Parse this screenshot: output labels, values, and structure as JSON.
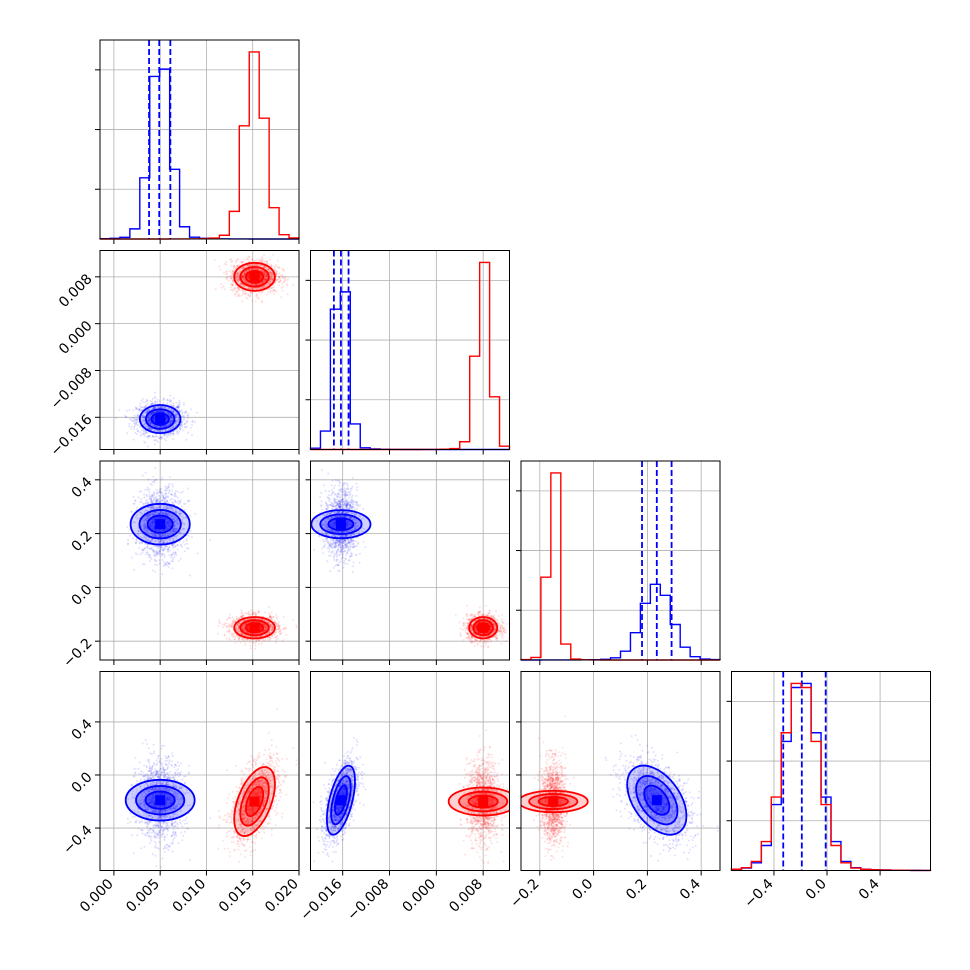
{
  "chart_data": {
    "type": "corner",
    "grid": true,
    "colors": {
      "series_a": "#0000ff",
      "series_b": "#ff0000",
      "grid": "#b0b0b0",
      "frame": "#000000"
    },
    "parameters": [
      {
        "range": [
          -0.0015,
          0.02
        ],
        "ticks": [
          0.0,
          0.005,
          0.01,
          0.015,
          0.02
        ],
        "tick_labels": [
          "0.000",
          "0.005",
          "0.010",
          "0.015",
          "0.020"
        ]
      },
      {
        "range": [
          -0.0215,
          0.0125
        ],
        "ticks": [
          -0.016,
          -0.008,
          0.0,
          0.008
        ],
        "tick_labels": [
          "−0.016",
          "−0.008",
          "0.000",
          "0.008"
        ]
      },
      {
        "range": [
          -0.27,
          0.47
        ],
        "ticks": [
          -0.2,
          0.0,
          0.2,
          0.4
        ],
        "tick_labels": [
          "−0.2",
          "0.0",
          "0.2",
          "0.4"
        ]
      },
      {
        "range": [
          -0.72,
          0.78
        ],
        "ticks": [
          -0.4,
          0.0,
          0.4
        ],
        "tick_labels": [
          "−0.4",
          "0.0",
          "0.4"
        ]
      }
    ],
    "series": [
      {
        "color": "blue",
        "mean": [
          0.005,
          -0.0163,
          0.235,
          -0.19
        ],
        "sigma": [
          0.0011,
          0.0012,
          0.055,
          0.13
        ],
        "quantiles": [
          [
            0.0038,
            0.0049,
            0.0061
          ],
          [
            -0.0175,
            -0.0163,
            -0.015
          ],
          [
            0.18,
            0.235,
            0.29
          ],
          [
            -0.33,
            -0.19,
            -0.01
          ]
        ],
        "corr": {
          "1-3": 0.55,
          "2-3": -0.45
        }
      },
      {
        "color": "red",
        "mean": [
          0.0152,
          0.008,
          -0.15,
          -0.2
        ],
        "sigma": [
          0.0011,
          0.0012,
          0.02,
          0.13
        ],
        "corr": {
          "0-3": 0.5
        }
      }
    ]
  }
}
